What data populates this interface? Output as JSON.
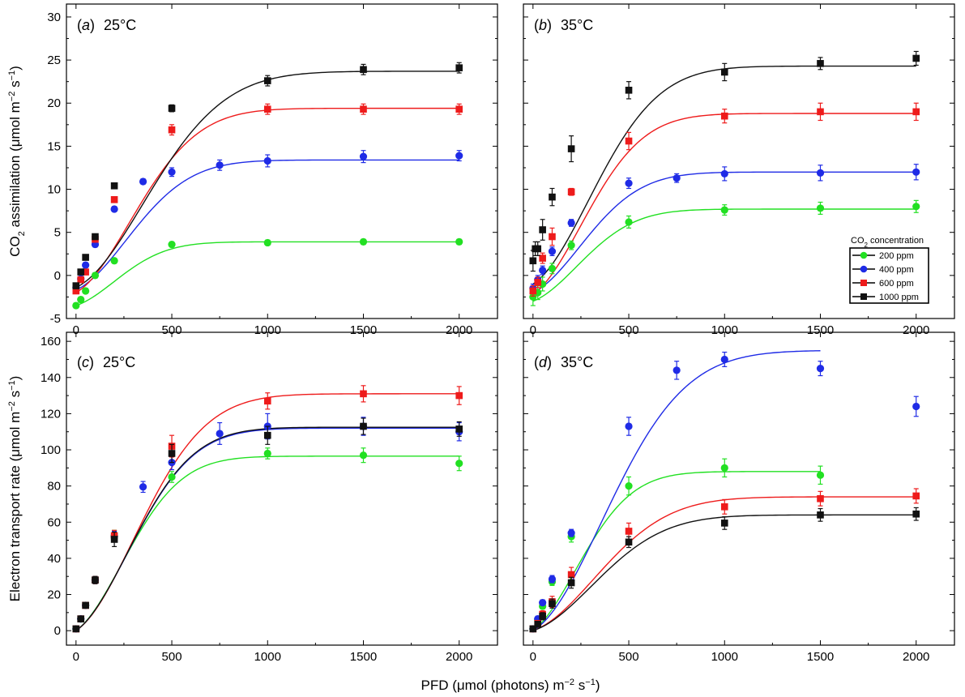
{
  "figure": {
    "shared_xlabel": "PFD (μmol (photons) m−2 s−1)",
    "shared_xlabel_parts": {
      "pre": "PFD (μmol (photons) m",
      "sup1": "−2",
      "mid": " s",
      "sup2": "−1",
      "post": ")"
    },
    "row1_ylabel_parts": {
      "a": "CO",
      "sub": "2",
      "b": " assimilation (μmol m",
      "sup1": "−2",
      "c": " s",
      "sup2": "−1",
      "d": ")"
    },
    "row2_ylabel_parts": {
      "a": "Electron transport rate (μmol m",
      "sup1": "−2",
      "b": " s",
      "sup2": "−1",
      "c": ")"
    },
    "legend": {
      "title_parts": {
        "a": "CO",
        "sub": "2",
        "b": " concentration"
      },
      "entries": [
        {
          "label": "200 ppm",
          "color": "#22e022",
          "marker": "circle"
        },
        {
          "label": "400 ppm",
          "color": "#1f2be6",
          "marker": "circle"
        },
        {
          "label": "600 ppm",
          "color": "#ee1b1b",
          "marker": "square"
        },
        {
          "label": "1000 ppm",
          "color": "#111111",
          "marker": "square"
        }
      ]
    }
  },
  "chart_data": [
    {
      "id": "a",
      "type": "scatter",
      "panel_letter": "a",
      "title": "25°C",
      "x_ticks": [
        0,
        500,
        1000,
        1500,
        2000
      ],
      "y_ticks": [
        -5,
        0,
        5,
        10,
        15,
        20,
        25,
        30
      ],
      "xlim": [
        -50,
        2200
      ],
      "ylim": [
        -5,
        31.5
      ],
      "series": [
        {
          "ref": "200 ppm",
          "color": "#22e022",
          "marker": "circle",
          "x": [
            0,
            25,
            50,
            100,
            200,
            500,
            1000,
            1500,
            2000
          ],
          "y": [
            -3.5,
            -2.8,
            -1.8,
            0.0,
            1.7,
            3.6,
            3.8,
            3.9,
            3.9
          ],
          "err": [
            0.3,
            0.3,
            0.3,
            0.3,
            0.3,
            0.3,
            0.3,
            0.3,
            0.3
          ],
          "fit": {
            "p0": -3.5,
            "p1": 3.9,
            "k": 6.8
          }
        },
        {
          "ref": "400 ppm",
          "color": "#1f2be6",
          "marker": "circle",
          "x": [
            0,
            25,
            50,
            100,
            200,
            350,
            500,
            750,
            1000,
            1500,
            2000
          ],
          "y": [
            -1.4,
            -0.4,
            1.2,
            3.6,
            7.7,
            10.9,
            12.0,
            12.8,
            13.3,
            13.8,
            13.9
          ],
          "err": [
            0.3,
            0.3,
            0.3,
            0.3,
            0.3,
            0.3,
            0.5,
            0.6,
            0.7,
            0.7,
            0.6
          ],
          "fit": {
            "p0": -1.7,
            "p1": 13.4,
            "k": 4.5
          }
        },
        {
          "ref": "600 ppm",
          "color": "#ee1b1b",
          "marker": "square",
          "x": [
            0,
            25,
            50,
            100,
            200,
            500,
            1000,
            1500,
            2000
          ],
          "y": [
            -1.8,
            -0.5,
            0.4,
            4.2,
            8.8,
            16.9,
            19.3,
            19.3,
            19.3
          ],
          "err": [
            0.3,
            0.3,
            0.3,
            0.3,
            0.3,
            0.6,
            0.6,
            0.6,
            0.6
          ],
          "fit": {
            "p0": -2.0,
            "p1": 19.4,
            "k": 4.0
          }
        },
        {
          "ref": "1000 ppm",
          "color": "#111111",
          "marker": "square",
          "x": [
            0,
            25,
            50,
            100,
            200,
            500,
            1000,
            1500,
            2000
          ],
          "y": [
            -1.2,
            0.4,
            2.1,
            4.5,
            10.4,
            19.4,
            22.6,
            23.9,
            24.1
          ],
          "err": [
            0.3,
            0.3,
            0.3,
            0.3,
            0.3,
            0.4,
            0.6,
            0.6,
            0.6
          ],
          "fit": {
            "p0": -1.4,
            "p1": 23.7,
            "k": 2.8
          }
        }
      ]
    },
    {
      "id": "b",
      "type": "scatter",
      "panel_letter": "b",
      "title": "35°C",
      "x_ticks": [
        0,
        500,
        1000,
        1500,
        2000
      ],
      "y_ticks": [
        -5,
        0,
        5,
        10,
        15,
        20,
        25,
        30
      ],
      "xlim": [
        -50,
        2200
      ],
      "ylim": [
        -5,
        31.5
      ],
      "series": [
        {
          "ref": "200 ppm",
          "color": "#22e022",
          "marker": "circle",
          "x": [
            0,
            25,
            50,
            100,
            200,
            500,
            1000,
            1500,
            2000
          ],
          "y": [
            -2.5,
            -2.0,
            -1.0,
            0.8,
            3.5,
            6.2,
            7.6,
            7.8,
            8.0
          ],
          "err": [
            1.0,
            0.8,
            0.8,
            0.6,
            0.5,
            0.7,
            0.6,
            0.7,
            0.7
          ],
          "fit": {
            "p0": -3.0,
            "p1": 7.7,
            "k": 5.5
          }
        },
        {
          "ref": "400 ppm",
          "color": "#1f2be6",
          "marker": "circle",
          "x": [
            0,
            25,
            50,
            100,
            200,
            500,
            750,
            1000,
            1500,
            2000
          ],
          "y": [
            -1.5,
            -0.5,
            0.6,
            2.8,
            6.1,
            10.7,
            11.3,
            11.8,
            11.9,
            12.0
          ],
          "err": [
            0.5,
            0.5,
            0.5,
            0.5,
            0.4,
            0.6,
            0.5,
            0.8,
            0.9,
            0.9
          ],
          "fit": {
            "p0": -2.0,
            "p1": 12.0,
            "k": 5.0
          }
        },
        {
          "ref": "600 ppm",
          "color": "#ee1b1b",
          "marker": "square",
          "x": [
            0,
            25,
            50,
            100,
            200,
            500,
            1000,
            1500,
            2000
          ],
          "y": [
            -1.8,
            -0.8,
            2.0,
            4.5,
            9.7,
            15.6,
            18.5,
            19.0,
            19.0
          ],
          "err": [
            0.6,
            0.6,
            0.6,
            1.0,
            0.4,
            1.0,
            0.8,
            1.0,
            1.0
          ],
          "fit": {
            "p0": -2.2,
            "p1": 18.8,
            "k": 4.8
          }
        },
        {
          "ref": "1000 ppm",
          "color": "#111111",
          "marker": "square",
          "x": [
            0,
            12,
            25,
            50,
            100,
            200,
            500,
            1000,
            1500,
            2000
          ],
          "y": [
            1.7,
            3.1,
            3.1,
            5.3,
            9.1,
            14.7,
            21.5,
            23.6,
            24.6,
            25.2
          ],
          "err": [
            1.2,
            0.8,
            0.8,
            1.2,
            1.0,
            1.5,
            1.0,
            1.0,
            0.7,
            0.8
          ],
          "fit": {
            "p0": -1.0,
            "p1": 24.3,
            "k": 3.8
          }
        }
      ]
    },
    {
      "id": "c",
      "type": "scatter",
      "panel_letter": "c",
      "title": "25°C",
      "x_ticks": [
        0,
        500,
        1000,
        1500,
        2000
      ],
      "y_ticks": [
        0,
        20,
        40,
        60,
        80,
        100,
        120,
        140,
        160
      ],
      "xlim": [
        -50,
        2200
      ],
      "ylim": [
        -8,
        165
      ],
      "series": [
        {
          "ref": "200 ppm",
          "color": "#22e022",
          "marker": "circle",
          "x": [
            0,
            25,
            50,
            100,
            200,
            500,
            1000,
            1500,
            2000
          ],
          "y": [
            1.0,
            6.5,
            14.0,
            28.0,
            52.5,
            85.0,
            98.0,
            97.0,
            92.5
          ],
          "err": [
            1.5,
            1.5,
            1.5,
            2.0,
            3.0,
            3.0,
            3.0,
            4.0,
            4.0
          ],
          "fit": {
            "p0": 0,
            "p1": 96.5,
            "k": 5.2
          }
        },
        {
          "ref": "400 ppm",
          "color": "#1f2be6",
          "marker": "circle",
          "x": [
            0,
            25,
            50,
            100,
            200,
            350,
            500,
            750,
            1000,
            1500,
            2000
          ],
          "y": [
            1.0,
            6.5,
            14.0,
            28.0,
            52.0,
            79.5,
            93.0,
            109.0,
            113.0,
            113.0,
            110.0
          ],
          "err": [
            1.5,
            1.5,
            1.5,
            2.0,
            3.0,
            3.0,
            4.0,
            6.0,
            7.0,
            5.0,
            5.0
          ],
          "fit": {
            "p0": 0,
            "p1": 112.0,
            "k": 4.3
          }
        },
        {
          "ref": "600 ppm",
          "color": "#ee1b1b",
          "marker": "square",
          "x": [
            0,
            25,
            50,
            100,
            200,
            500,
            1000,
            1500,
            2000
          ],
          "y": [
            1.0,
            6.5,
            14.0,
            28.0,
            52.5,
            102.0,
            127.0,
            131.0,
            130.0
          ],
          "err": [
            1.5,
            1.5,
            1.5,
            2.0,
            3.0,
            6.0,
            4.5,
            4.5,
            5.0
          ],
          "fit": {
            "p0": 0,
            "p1": 131.0,
            "k": 3.6
          }
        },
        {
          "ref": "1000 ppm",
          "color": "#111111",
          "marker": "square",
          "x": [
            0,
            25,
            50,
            100,
            200,
            500,
            1000,
            1500,
            2000
          ],
          "y": [
            1.0,
            6.5,
            14.0,
            28.0,
            50.5,
            98.0,
            108.0,
            113.0,
            111.5
          ],
          "err": [
            1.5,
            1.5,
            1.5,
            2.0,
            4.0,
            5.0,
            5.0,
            4.5,
            4.0
          ],
          "fit": {
            "p0": 0,
            "p1": 112.5,
            "k": 4.3
          }
        }
      ]
    },
    {
      "id": "d",
      "type": "scatter",
      "panel_letter": "d",
      "title": "35°C",
      "x_ticks": [
        0,
        500,
        1000,
        1500,
        2000
      ],
      "y_ticks": [
        0,
        20,
        40,
        60,
        80,
        100,
        120,
        140,
        160
      ],
      "xlim": [
        -50,
        2200
      ],
      "ylim": [
        -8,
        165
      ],
      "series": [
        {
          "ref": "200 ppm",
          "color": "#22e022",
          "marker": "circle",
          "x": [
            0,
            25,
            50,
            100,
            200,
            500,
            1000,
            1500
          ],
          "y": [
            1.0,
            6.0,
            13.5,
            27.0,
            52.0,
            80.0,
            90.0,
            86.0
          ],
          "err": [
            1.5,
            1.5,
            1.5,
            2.0,
            3.0,
            5.0,
            5.0,
            5.0
          ],
          "fit": {
            "p0": 0,
            "p1": 88.0,
            "k": 5.8,
            "x_end": 1500
          }
        },
        {
          "ref": "400 ppm",
          "color": "#1f2be6",
          "marker": "circle",
          "x": [
            0,
            25,
            50,
            100,
            200,
            500,
            750,
            1000,
            1500,
            2000
          ],
          "y": [
            1.0,
            6.5,
            15.5,
            28.5,
            54.0,
            113.0,
            144.0,
            150.0,
            145.0,
            124.0
          ],
          "err": [
            1.5,
            1.5,
            1.5,
            2.0,
            2.0,
            5.0,
            5.0,
            4.0,
            4.0,
            5.5
          ],
          "fit": {
            "p0": 0,
            "p1": 155.0,
            "k": 2.7,
            "x_end": 1500
          }
        },
        {
          "ref": "600 ppm",
          "color": "#ee1b1b",
          "marker": "square",
          "x": [
            0,
            25,
            50,
            100,
            200,
            500,
            1000,
            1500,
            2000
          ],
          "y": [
            1.0,
            4.0,
            9.0,
            16.0,
            31.0,
            55.0,
            68.5,
            73.0,
            74.5
          ],
          "err": [
            1.5,
            1.5,
            2.0,
            3.0,
            4.0,
            4.5,
            4.0,
            4.0,
            4.0
          ],
          "fit": {
            "p0": 0,
            "p1": 74.0,
            "k": 3.3
          }
        },
        {
          "ref": "1000 ppm",
          "color": "#111111",
          "marker": "square",
          "x": [
            0,
            25,
            50,
            100,
            200,
            500,
            1000,
            1500,
            2000
          ],
          "y": [
            1.0,
            3.5,
            8.0,
            15.0,
            26.5,
            49.0,
            59.5,
            64.0,
            64.5
          ],
          "err": [
            1.5,
            1.5,
            2.0,
            2.5,
            3.0,
            3.0,
            3.5,
            3.5,
            3.5
          ],
          "fit": {
            "p0": 0,
            "p1": 64.0,
            "k": 3.5
          }
        }
      ]
    }
  ]
}
